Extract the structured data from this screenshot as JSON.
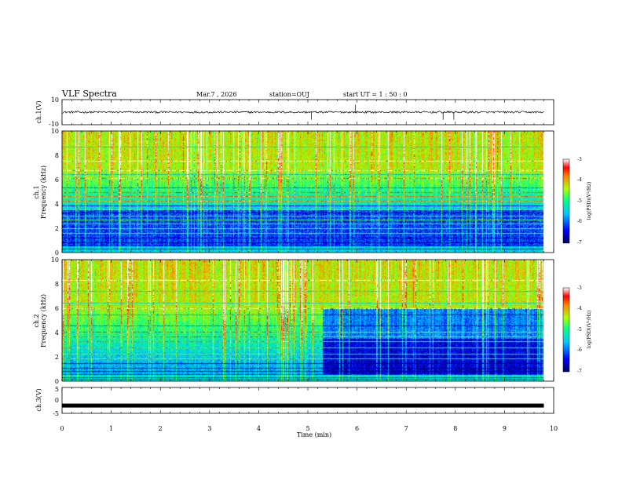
{
  "header": {
    "title": "VLF Spectra",
    "date": "Mar.7 , 2026",
    "station": "station=OUJ",
    "start": "start UT =  1 : 50 : 0"
  },
  "chart_data": [
    {
      "type": "line",
      "name": "ch1-waveform",
      "ylabel": "ch.1(V)",
      "ylim": [
        -10,
        10
      ],
      "yticks": [
        "10",
        "-10"
      ],
      "baseline": 0,
      "spikes": [
        {
          "x": 5.07,
          "y": -6
        },
        {
          "x": 5.97,
          "y": 6
        },
        {
          "x": 7.75,
          "y": -6
        },
        {
          "x": 7.97,
          "y": -6
        }
      ]
    },
    {
      "type": "heatmap",
      "name": "ch1-spectrogram",
      "ylabel_top": "ch.1",
      "ylabel": "Frequency (kHz)",
      "xlim": [
        0,
        10
      ],
      "ylim": [
        0,
        10
      ],
      "yticks": [
        "0",
        "2",
        "4",
        "6",
        "8",
        "10"
      ],
      "data_end_x": 9.8,
      "colorbar": {
        "label": "log(PSD)(V²/Hz)",
        "range": [
          -7,
          -3
        ],
        "ticks": [
          "-3",
          "-4",
          "-5",
          "-6",
          "-7"
        ]
      }
    },
    {
      "type": "heatmap",
      "name": "ch2-spectrogram",
      "ylabel_top": "ch.2",
      "ylabel": "Frequency (kHz)",
      "xlim": [
        0,
        10
      ],
      "ylim": [
        0,
        10
      ],
      "yticks": [
        "0",
        "2",
        "4",
        "6",
        "8",
        "10"
      ],
      "data_end_x": 9.8,
      "quiet_from_x": 5.3,
      "colorbar": {
        "label": "log(PSD)(V²/Hz)",
        "range": [
          -7,
          -3
        ],
        "ticks": [
          "-3",
          "-4",
          "-5",
          "-6",
          "-7"
        ]
      }
    },
    {
      "type": "line",
      "name": "ch3-waveform",
      "ylabel": "ch.3(V)",
      "ylim": [
        -5,
        5
      ],
      "yticks": [
        "5",
        "0",
        "-5"
      ],
      "baseline": -2
    }
  ],
  "xaxis": {
    "label": "Time (min)",
    "ticks": [
      "0",
      "1",
      "2",
      "3",
      "4",
      "5",
      "6",
      "7",
      "8",
      "9",
      "10"
    ]
  },
  "colors": {
    "low": "#000080",
    "mid_low": "#00c0ff",
    "mid": "#40e060",
    "high": "#ff0000"
  }
}
